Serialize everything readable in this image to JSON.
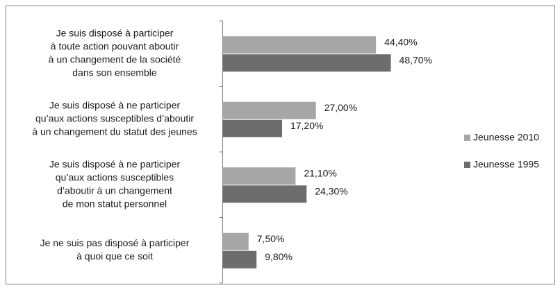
{
  "chart_data": {
    "type": "bar",
    "orientation": "horizontal",
    "categories": [
      [
        "Je suis disposé à participer",
        "à toute action pouvant aboutir",
        "à un changement de la société",
        "dans son ensemble"
      ],
      [
        "Je suis disposé à ne participer",
        "qu’aux actions susceptibles d’aboutir",
        "à un changement du statut des jeunes"
      ],
      [
        "Je suis disposé à ne participer",
        "qu’aux actions susceptibles",
        "d’aboutir à un changement",
        "de mon statut personnel"
      ],
      [
        "Je ne suis pas disposé à participer",
        "à quoi que ce soit"
      ]
    ],
    "series": [
      {
        "name": "Jeunesse 2010",
        "color": "#a6a6a6",
        "values": [
          44.4,
          27.0,
          21.1,
          7.5
        ],
        "value_labels": [
          "44,40%",
          "27,00%",
          "21,10%",
          "7,50%"
        ]
      },
      {
        "name": "Jeunesse 1995",
        "color": "#6d6d6d",
        "values": [
          48.7,
          17.2,
          24.3,
          9.8
        ],
        "value_labels": [
          "48,70%",
          "17,20%",
          "24,30%",
          "9,80%"
        ]
      }
    ],
    "legend": "right"
  }
}
